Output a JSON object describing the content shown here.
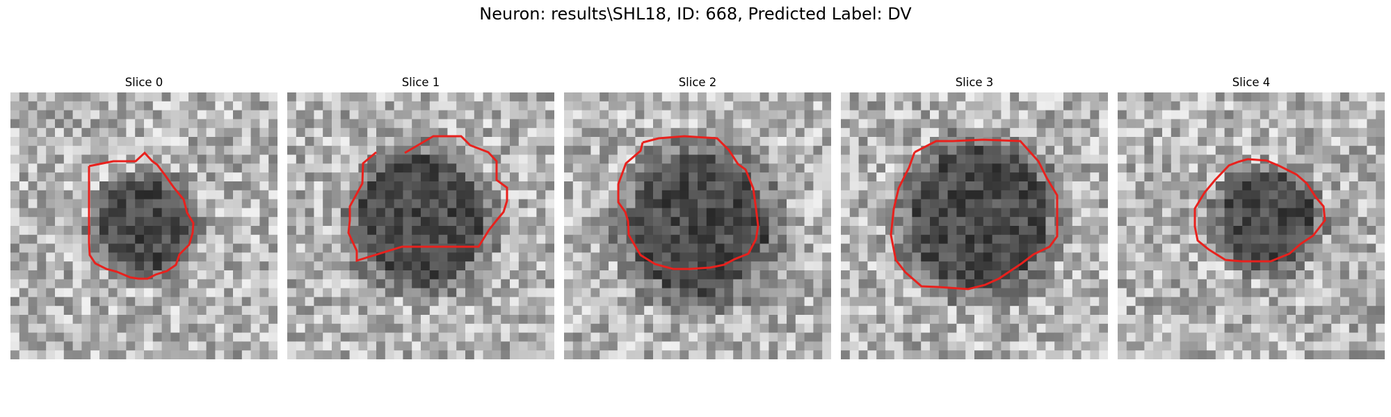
{
  "figure": {
    "title": "Neuron: results\\SHL18, ID: 668, Predicted Label: DV"
  },
  "panels": [
    {
      "title": "Slice 0"
    },
    {
      "title": "Slice 1"
    },
    {
      "title": "Slice 2"
    },
    {
      "title": "Slice 3"
    },
    {
      "title": "Slice 4"
    }
  ],
  "colors": {
    "contour": "#e8211d",
    "colormap": "gray"
  }
}
